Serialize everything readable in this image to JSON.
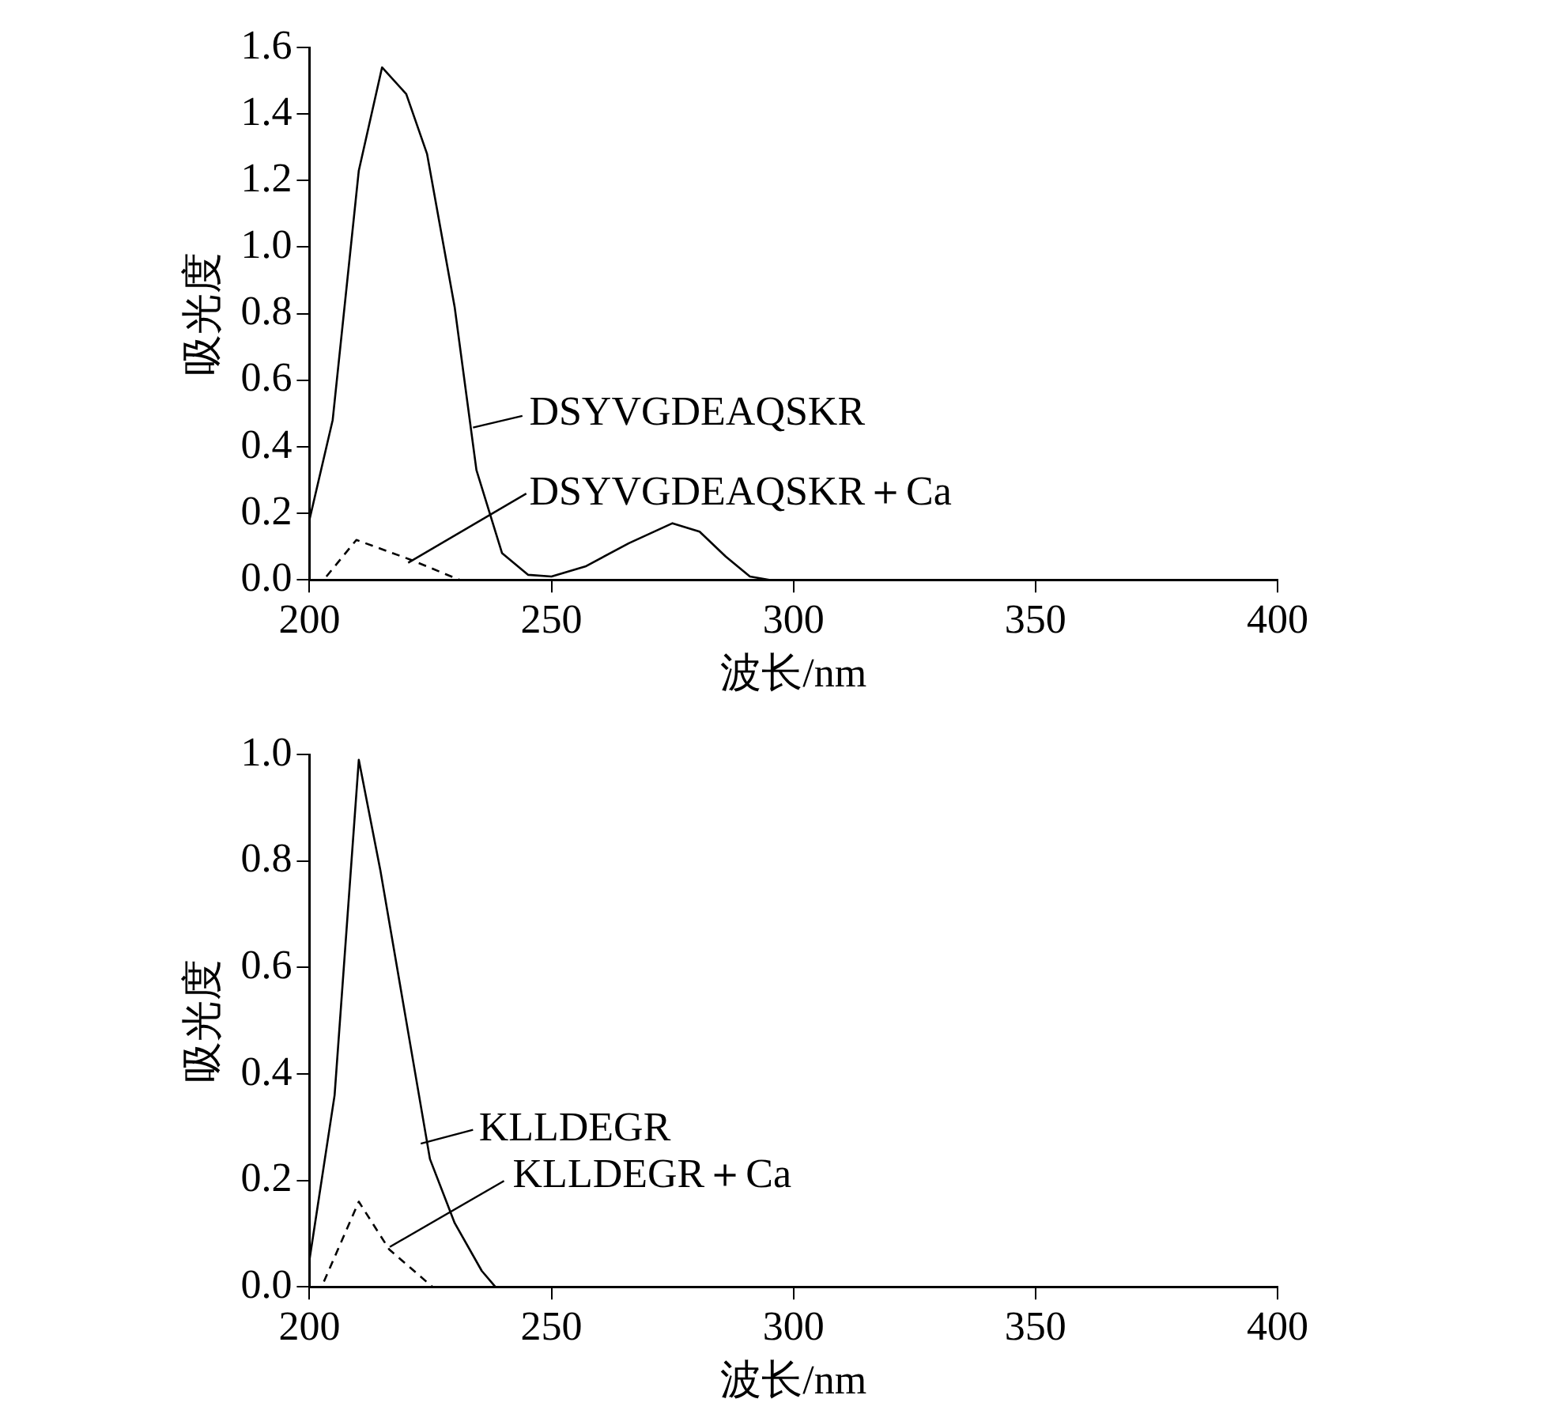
{
  "chart_data": [
    {
      "type": "line",
      "xlabel": "波长/nm",
      "ylabel": "吸光度",
      "xlim": [
        200,
        400
      ],
      "xticks": [
        200,
        250,
        300,
        350,
        400
      ],
      "ylim": [
        0,
        1.6
      ],
      "yticks": [
        {
          "value": 0,
          "label": "0.0"
        },
        {
          "value": 0.2,
          "label": "0.2"
        },
        {
          "value": 0.4,
          "label": "0.4"
        },
        {
          "value": 0.6,
          "label": "0.6"
        },
        {
          "value": 0.8,
          "label": "0.8"
        },
        {
          "value": 1,
          "label": "1.0"
        },
        {
          "value": 1.2,
          "label": "1.2"
        },
        {
          "value": 1.4,
          "label": "1.4"
        },
        {
          "value": 1.6,
          "label": "1.6"
        }
      ],
      "grid": false,
      "legend": "center",
      "marker": "none",
      "series": [
        {
          "name": "DSYVGDEAQSKR",
          "color": "#000000",
          "line_style": "solid",
          "x": [
            200,
            204.8,
            210.2,
            215,
            220,
            224.3,
            230,
            234.5,
            239.8,
            245.2,
            250,
            257,
            266,
            275,
            280.6,
            286,
            291,
            295,
            400
          ],
          "values": [
            0.18,
            0.48,
            1.23,
            1.54,
            1.46,
            1.28,
            0.82,
            0.33,
            0.08,
            0.015,
            0.01,
            0.04,
            0.11,
            0.17,
            0.145,
            0.07,
            0.01,
            0,
            0
          ]
        },
        {
          "name": "DSYVGDEAQSKR＋Ca",
          "color": "#000000",
          "line_style": "dashed",
          "x": [
            203.5,
            209.7,
            221,
            231
          ],
          "values": [
            0.01,
            0.12,
            0.06,
            0
          ]
        }
      ]
    },
    {
      "type": "line",
      "xlabel": "波长/nm",
      "ylabel": "吸光度",
      "xlim": [
        200,
        400
      ],
      "xticks": [
        200,
        250,
        300,
        350,
        400
      ],
      "ylim": [
        0,
        1
      ],
      "yticks": [
        {
          "value": 0,
          "label": "0.0"
        },
        {
          "value": 0.2,
          "label": "0.2"
        },
        {
          "value": 0.4,
          "label": "0.4"
        },
        {
          "value": 0.6,
          "label": "0.6"
        },
        {
          "value": 0.8,
          "label": "0.8"
        },
        {
          "value": 1,
          "label": "1.0"
        }
      ],
      "grid": false,
      "legend": "left",
      "marker": "none",
      "series": [
        {
          "name": "KLLDEGR",
          "color": "#000000",
          "line_style": "solid",
          "x": [
            200,
            205.2,
            210.2,
            214.7,
            219.8,
            224.9,
            230,
            235.6,
            238.4,
            400
          ],
          "values": [
            0.05,
            0.36,
            0.99,
            0.78,
            0.51,
            0.24,
            0.12,
            0.03,
            0,
            0
          ]
        },
        {
          "name": "KLLDEGR＋Ca",
          "color": "#000000",
          "line_style": "dashed",
          "x": [
            203,
            210.2,
            216.5,
            225.4
          ],
          "values": [
            0.01,
            0.16,
            0.07,
            0
          ]
        }
      ]
    }
  ]
}
